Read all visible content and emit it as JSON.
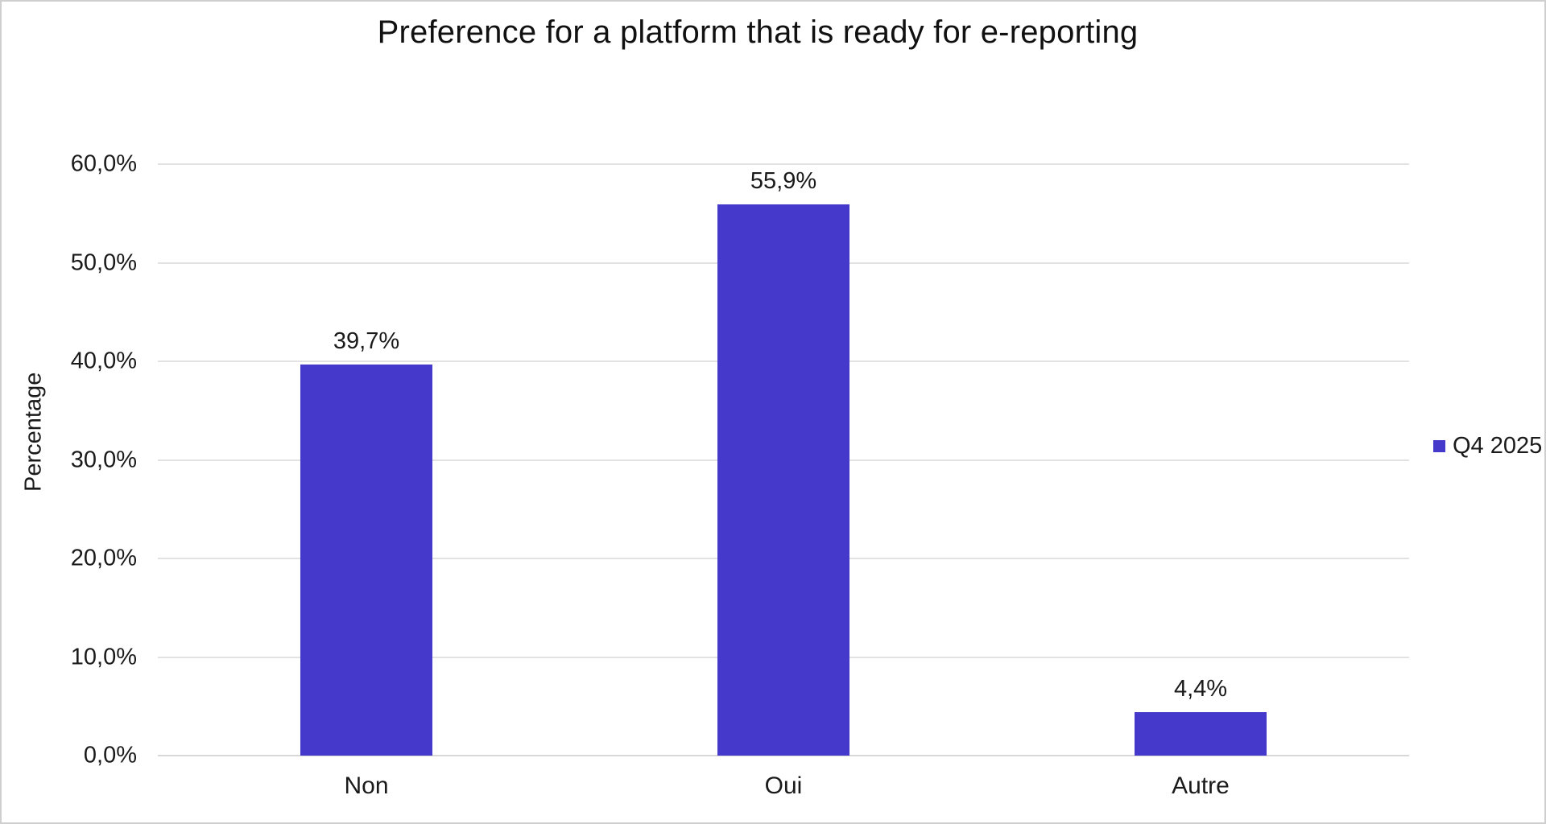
{
  "chart": {
    "title": "Preference for a platform that is ready for e-reporting",
    "ylabel": "Percentage"
  },
  "chart_data": {
    "type": "bar",
    "title": "Preference for a platform that is ready for e-reporting",
    "categories": [
      "Non",
      "Oui",
      "Autre"
    ],
    "series": [
      {
        "name": "Q4 2025",
        "values": [
          39.7,
          55.9,
          4.4
        ]
      }
    ],
    "value_labels": [
      "39,7%",
      "55,9%",
      "4,4%"
    ],
    "xlabel": "",
    "ylabel": "Percentage",
    "ylim": [
      0,
      60
    ],
    "yticks": [
      {
        "value": 0,
        "label": "0,0%"
      },
      {
        "value": 10,
        "label": "10,0%"
      },
      {
        "value": 20,
        "label": "20,0%"
      },
      {
        "value": 30,
        "label": "30,0%"
      },
      {
        "value": 40,
        "label": "40,0%"
      },
      {
        "value": 50,
        "label": "50,0%"
      },
      {
        "value": 60,
        "label": "60,0%"
      }
    ],
    "grid": true,
    "legend_position": "right",
    "colors": {
      "bar": "#4539CB",
      "gridline": "#E2E2E2",
      "baseline": "#D8D8D8",
      "text": "#1A1A1A",
      "frame_border": "#CFCFCF"
    }
  },
  "legend": {
    "items": [
      {
        "label": "Q4 2025",
        "color": "#4539CB"
      }
    ]
  }
}
